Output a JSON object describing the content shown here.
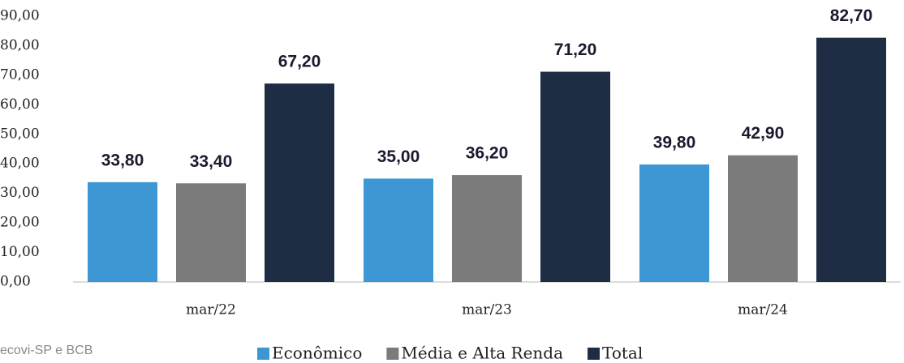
{
  "chart_data": {
    "type": "bar",
    "categories": [
      "mar/22",
      "mar/23",
      "mar/24"
    ],
    "series": [
      {
        "name": "Econômico",
        "color": "#3d97d5",
        "values": [
          33.8,
          35.0,
          39.8
        ],
        "value_labels": [
          "33,80",
          "35,00",
          "39,80"
        ]
      },
      {
        "name": "Média e Alta Renda",
        "color": "#7b7b7b",
        "values": [
          33.4,
          36.2,
          42.9
        ],
        "value_labels": [
          "33,40",
          "36,20",
          "42,90"
        ]
      },
      {
        "name": "Total",
        "color": "#1f2d44",
        "values": [
          67.2,
          71.2,
          82.7
        ],
        "value_labels": [
          "67,20",
          "71,20",
          "82,70"
        ]
      }
    ],
    "ylim": [
      0,
      90
    ],
    "yticks": [
      {
        "value": 0,
        "label": "0,00"
      },
      {
        "value": 10,
        "label": "10,00"
      },
      {
        "value": 20,
        "label": "20,00"
      },
      {
        "value": 30,
        "label": "30,00"
      },
      {
        "value": 40,
        "label": "40,00"
      },
      {
        "value": 50,
        "label": "50,00"
      },
      {
        "value": 60,
        "label": "60,00"
      },
      {
        "value": 70,
        "label": "70,00"
      },
      {
        "value": 80,
        "label": "80,00"
      },
      {
        "value": 90,
        "label": "90,00"
      }
    ],
    "grid": false,
    "legend": "bottom",
    "source": "ecovi-SP e BCB"
  }
}
